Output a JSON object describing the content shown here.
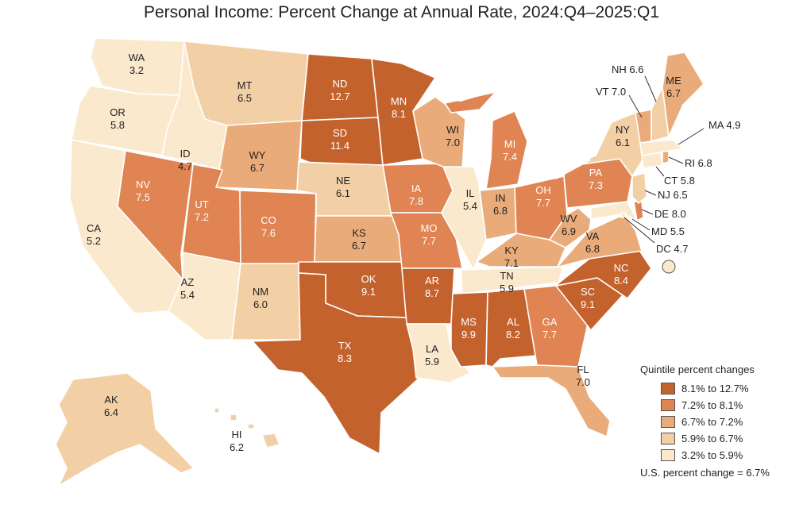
{
  "title": "Personal Income: Percent Change at Annual Rate, 2024:Q4–2025:Q1",
  "legend": {
    "title": "Quintile percent changes",
    "items": [
      {
        "label": "8.1% to 12.7%",
        "color": "#c4622d"
      },
      {
        "label": "7.2% to 8.1%",
        "color": "#df8452"
      },
      {
        "label": "6.7% to 7.2%",
        "color": "#eaab7a"
      },
      {
        "label": "5.9% to 6.7%",
        "color": "#f3cfa6"
      },
      {
        "label": "3.2% to 5.9%",
        "color": "#fbe9cd"
      }
    ],
    "us_note": "U.S. percent change = 6.7%"
  },
  "states": {
    "WA": {
      "abbr": "WA",
      "value": "3.2",
      "q": 4
    },
    "OR": {
      "abbr": "OR",
      "value": "5.8",
      "q": 4
    },
    "CA": {
      "abbr": "CA",
      "value": "5.2",
      "q": 4
    },
    "ID": {
      "abbr": "ID",
      "value": "4.7",
      "q": 4
    },
    "NV": {
      "abbr": "NV",
      "value": "7.5",
      "q": 1
    },
    "AZ": {
      "abbr": "AZ",
      "value": "5.4",
      "q": 4
    },
    "MT": {
      "abbr": "MT",
      "value": "6.5",
      "q": 3
    },
    "WY": {
      "abbr": "WY",
      "value": "6.7",
      "q": 2
    },
    "UT": {
      "abbr": "UT",
      "value": "7.2",
      "q": 1
    },
    "CO": {
      "abbr": "CO",
      "value": "7.6",
      "q": 1
    },
    "NM": {
      "abbr": "NM",
      "value": "6.0",
      "q": 3
    },
    "ND": {
      "abbr": "ND",
      "value": "12.7",
      "q": 0
    },
    "SD": {
      "abbr": "SD",
      "value": "11.4",
      "q": 0
    },
    "NE": {
      "abbr": "NE",
      "value": "6.1",
      "q": 3
    },
    "KS": {
      "abbr": "KS",
      "value": "6.7",
      "q": 2
    },
    "OK": {
      "abbr": "OK",
      "value": "9.1",
      "q": 0
    },
    "TX": {
      "abbr": "TX",
      "value": "8.3",
      "q": 0
    },
    "MN": {
      "abbr": "MN",
      "value": "8.1",
      "q": 0
    },
    "IA": {
      "abbr": "IA",
      "value": "7.8",
      "q": 1
    },
    "MO": {
      "abbr": "MO",
      "value": "7.7",
      "q": 1
    },
    "AR": {
      "abbr": "AR",
      "value": "8.7",
      "q": 0
    },
    "LA": {
      "abbr": "LA",
      "value": "5.9",
      "q": 4
    },
    "WI": {
      "abbr": "WI",
      "value": "7.0",
      "q": 2
    },
    "IL": {
      "abbr": "IL",
      "value": "5.4",
      "q": 4
    },
    "MI": {
      "abbr": "MI",
      "value": "7.4",
      "q": 1
    },
    "IN": {
      "abbr": "IN",
      "value": "6.8",
      "q": 2
    },
    "OH": {
      "abbr": "OH",
      "value": "7.7",
      "q": 1
    },
    "KY": {
      "abbr": "KY",
      "value": "7.1",
      "q": 2
    },
    "TN": {
      "abbr": "TN",
      "value": "5.9",
      "q": 4
    },
    "MS": {
      "abbr": "MS",
      "value": "9.9",
      "q": 0
    },
    "AL": {
      "abbr": "AL",
      "value": "8.2",
      "q": 0
    },
    "GA": {
      "abbr": "GA",
      "value": "7.7",
      "q": 1
    },
    "FL": {
      "abbr": "FL",
      "value": "7.0",
      "q": 2
    },
    "SC": {
      "abbr": "SC",
      "value": "9.1",
      "q": 0
    },
    "NC": {
      "abbr": "NC",
      "value": "8.4",
      "q": 0
    },
    "VA": {
      "abbr": "VA",
      "value": "6.8",
      "q": 2
    },
    "WV": {
      "abbr": "WV",
      "value": "6.9",
      "q": 2
    },
    "PA": {
      "abbr": "PA",
      "value": "7.3",
      "q": 1
    },
    "NY": {
      "abbr": "NY",
      "value": "6.1",
      "q": 3
    },
    "ME": {
      "abbr": "ME",
      "value": "6.7",
      "q": 2
    },
    "NH": {
      "abbr": "NH",
      "value": "6.6",
      "q": 3
    },
    "VT": {
      "abbr": "VT",
      "value": "7.0",
      "q": 2
    },
    "MA": {
      "abbr": "MA",
      "value": "4.9",
      "q": 4
    },
    "RI": {
      "abbr": "RI",
      "value": "6.8",
      "q": 2
    },
    "CT": {
      "abbr": "CT",
      "value": "5.8",
      "q": 4
    },
    "NJ": {
      "abbr": "NJ",
      "value": "6.5",
      "q": 3
    },
    "DE": {
      "abbr": "DE",
      "value": "8.0",
      "q": 1
    },
    "MD": {
      "abbr": "MD",
      "value": "5.5",
      "q": 4
    },
    "DC": {
      "abbr": "DC",
      "value": "4.7",
      "q": 4
    },
    "AK": {
      "abbr": "AK",
      "value": "6.4",
      "q": 3
    },
    "HI": {
      "abbr": "HI",
      "value": "6.2",
      "q": 3
    }
  }
}
